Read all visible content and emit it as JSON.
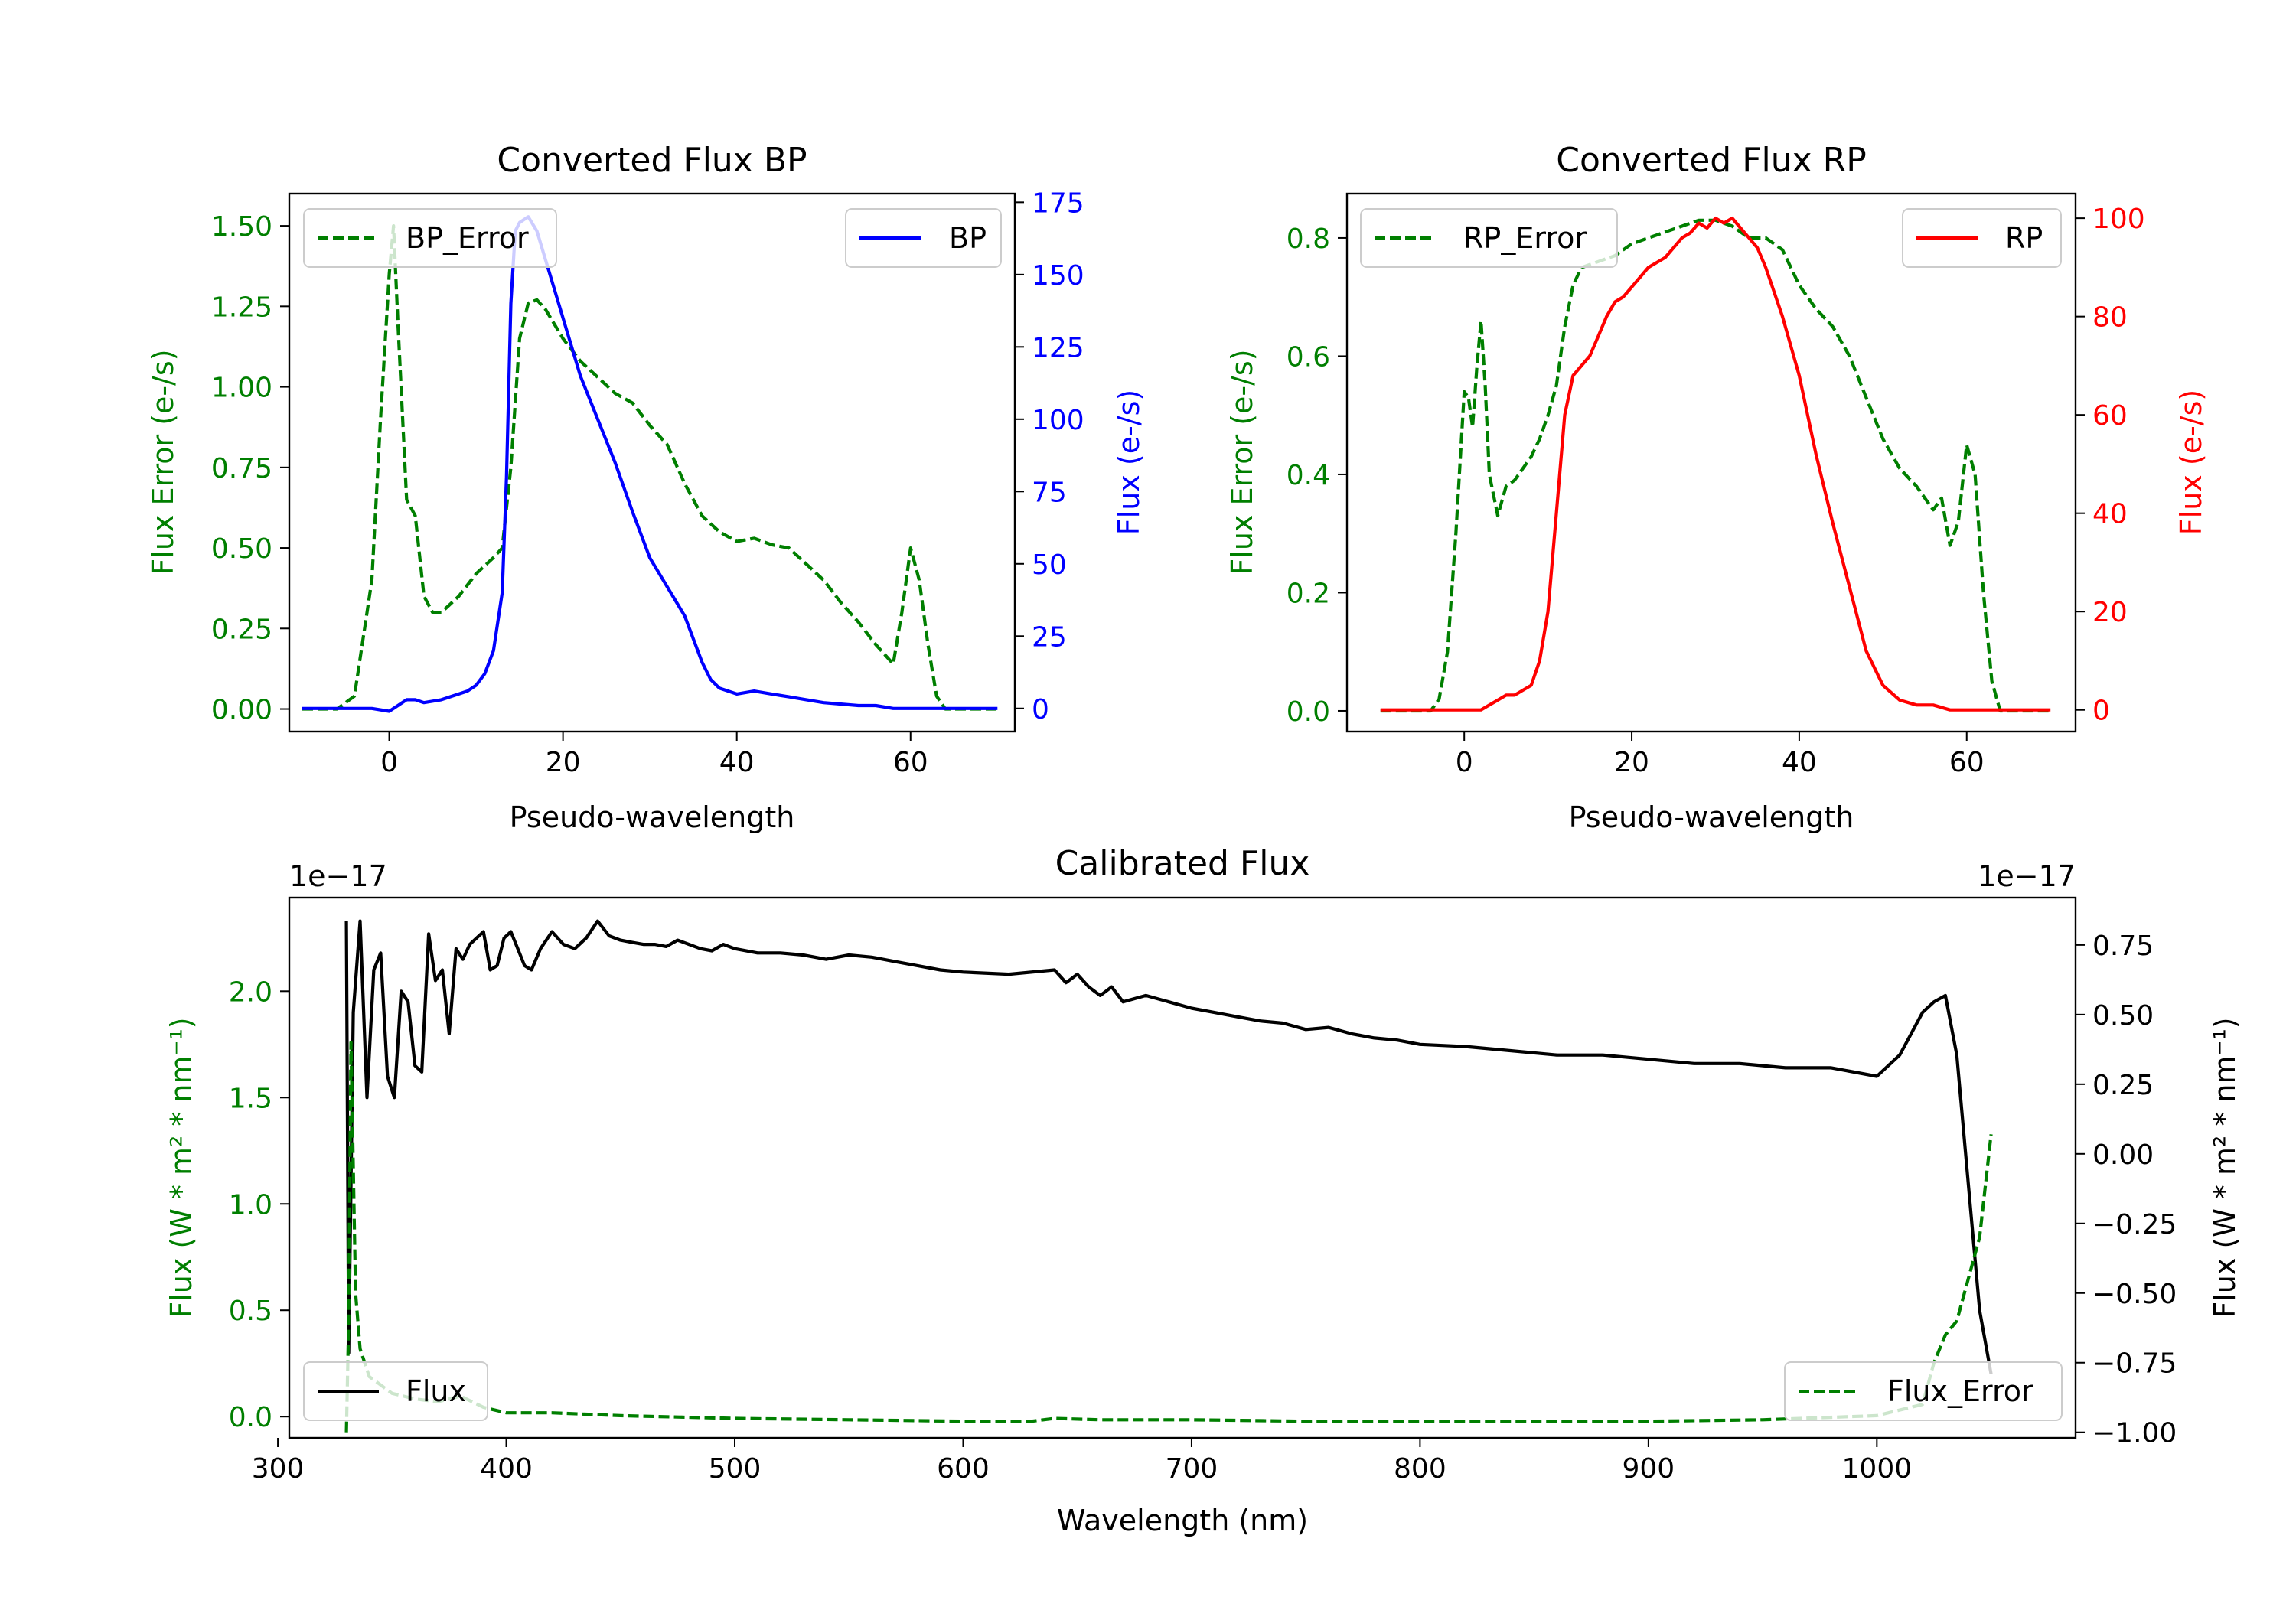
{
  "colors": {
    "green": "#007f00",
    "blue": "#0000ff",
    "red": "#ff0000",
    "black": "#000000"
  },
  "chart_data": [
    {
      "id": "bp",
      "type": "line",
      "title": "Converted Flux BP",
      "xlabel": "Pseudo-wavelength",
      "ylabel_left": "Flux Error (e-/s)",
      "ylabel_right": "Flux (e-/s)",
      "xlim": [
        -11.5,
        72
      ],
      "ylim_left": [
        -0.07,
        1.6
      ],
      "ylim_right": [
        -8,
        178
      ],
      "xticks": [
        "0",
        "20",
        "40",
        "60"
      ],
      "xtick_values": [
        0,
        20,
        40,
        60
      ],
      "yticks_left": [
        "0.00",
        "0.25",
        "0.50",
        "0.75",
        "1.00",
        "1.25",
        "1.50"
      ],
      "ytick_values_left": [
        0,
        0.25,
        0.5,
        0.75,
        1.0,
        1.25,
        1.5
      ],
      "yticks_right": [
        "0",
        "25",
        "50",
        "75",
        "100",
        "125",
        "150",
        "175"
      ],
      "ytick_values_right": [
        0,
        25,
        50,
        75,
        100,
        125,
        150,
        175
      ],
      "legend_left": "BP_Error",
      "legend_right": "BP",
      "series": [
        {
          "name": "BP_Error",
          "axis": "left",
          "style": "dashed",
          "color": "green",
          "x": [
            -10,
            -6,
            -4,
            -2,
            -1,
            0,
            0.5,
            1,
            2,
            3,
            4,
            5,
            6,
            8,
            10,
            12,
            13,
            14,
            15,
            16,
            17,
            18,
            20,
            22,
            24,
            26,
            28,
            30,
            32,
            34,
            36,
            38,
            40,
            42,
            44,
            46,
            48,
            50,
            52,
            54,
            56,
            57,
            58,
            59,
            60,
            61,
            62,
            63,
            64,
            66,
            70
          ],
          "y": [
            0,
            0,
            0.04,
            0.4,
            0.9,
            1.35,
            1.5,
            1.2,
            0.65,
            0.6,
            0.35,
            0.3,
            0.3,
            0.35,
            0.42,
            0.47,
            0.5,
            0.75,
            1.15,
            1.26,
            1.27,
            1.24,
            1.15,
            1.08,
            1.03,
            0.98,
            0.95,
            0.88,
            0.82,
            0.7,
            0.6,
            0.55,
            0.52,
            0.53,
            0.51,
            0.5,
            0.45,
            0.4,
            0.33,
            0.27,
            0.2,
            0.17,
            0.14,
            0.3,
            0.5,
            0.4,
            0.2,
            0.04,
            0,
            0,
            0
          ]
        },
        {
          "name": "BP",
          "axis": "right",
          "style": "solid",
          "color": "blue",
          "x": [
            -10,
            -6,
            -2,
            0,
            1,
            2,
            3,
            4,
            6,
            7,
            8,
            9,
            10,
            11,
            12,
            13,
            13.5,
            14,
            14.5,
            15,
            16,
            17,
            18,
            19,
            20,
            22,
            24,
            26,
            28,
            30,
            32,
            34,
            36,
            37,
            38,
            40,
            42,
            44,
            46,
            48,
            50,
            54,
            56,
            58,
            60,
            64,
            70
          ],
          "y": [
            0,
            0,
            0,
            -1,
            1,
            3,
            3,
            2,
            3,
            4,
            5,
            6,
            8,
            12,
            20,
            40,
            80,
            140,
            165,
            168,
            170,
            165,
            155,
            145,
            135,
            115,
            100,
            85,
            68,
            52,
            42,
            32,
            16,
            10,
            7,
            5,
            6,
            5,
            4,
            3,
            2,
            1,
            1,
            0,
            0,
            0,
            0
          ]
        }
      ]
    },
    {
      "id": "rp",
      "type": "line",
      "title": "Converted Flux RP",
      "xlabel": "Pseudo-wavelength",
      "ylabel_left": "Flux Error (e-/s)",
      "ylabel_right": "Flux (e-/s)",
      "xlim": [
        -14,
        73
      ],
      "ylim_left": [
        -0.035,
        0.875
      ],
      "ylim_right": [
        -4.4,
        105
      ],
      "xticks": [
        "0",
        "20",
        "40",
        "60"
      ],
      "xtick_values": [
        0,
        20,
        40,
        60
      ],
      "yticks_left": [
        "0.0",
        "0.2",
        "0.4",
        "0.6",
        "0.8"
      ],
      "ytick_values_left": [
        0,
        0.2,
        0.4,
        0.6,
        0.8
      ],
      "yticks_right": [
        "0",
        "20",
        "40",
        "60",
        "80",
        "100"
      ],
      "ytick_values_right": [
        0,
        20,
        40,
        60,
        80,
        100
      ],
      "legend_left": "RP_Error",
      "legend_right": "RP",
      "series": [
        {
          "name": "RP_Error",
          "axis": "left",
          "style": "dashed",
          "color": "green",
          "x": [
            -10,
            -4,
            -3,
            -2,
            -1,
            0,
            0.5,
            1,
            1.5,
            2,
            2.5,
            3,
            4,
            5,
            6,
            7,
            8,
            9,
            10,
            11,
            12,
            13,
            14,
            16,
            18,
            20,
            22,
            24,
            26,
            28,
            30,
            32,
            34,
            36,
            38,
            40,
            42,
            44,
            46,
            48,
            50,
            52,
            54,
            56,
            57,
            58,
            59,
            60,
            61,
            62,
            63,
            64,
            66,
            70
          ],
          "y": [
            0,
            0,
            0.02,
            0.1,
            0.3,
            0.54,
            0.53,
            0.48,
            0.58,
            0.66,
            0.55,
            0.4,
            0.33,
            0.38,
            0.39,
            0.41,
            0.43,
            0.46,
            0.5,
            0.55,
            0.65,
            0.72,
            0.75,
            0.76,
            0.77,
            0.79,
            0.8,
            0.81,
            0.82,
            0.83,
            0.83,
            0.82,
            0.8,
            0.8,
            0.78,
            0.72,
            0.68,
            0.65,
            0.6,
            0.53,
            0.46,
            0.41,
            0.38,
            0.34,
            0.36,
            0.28,
            0.32,
            0.45,
            0.4,
            0.2,
            0.05,
            0,
            0,
            0
          ]
        },
        {
          "name": "RP",
          "axis": "right",
          "style": "solid",
          "color": "red",
          "x": [
            -10,
            -4,
            0,
            2,
            3,
            4,
            5,
            6,
            7,
            8,
            9,
            10,
            11,
            12,
            13,
            14,
            15,
            16,
            17,
            18,
            19,
            20,
            21,
            22,
            24,
            26,
            27,
            28,
            29,
            30,
            31,
            32,
            33,
            34,
            35,
            36,
            37,
            38,
            40,
            42,
            44,
            46,
            48,
            50,
            52,
            54,
            56,
            58,
            60,
            62,
            66,
            70
          ],
          "y": [
            0,
            0,
            0,
            0,
            1,
            2,
            3,
            3,
            4,
            5,
            10,
            20,
            40,
            60,
            68,
            70,
            72,
            76,
            80,
            83,
            84,
            86,
            88,
            90,
            92,
            96,
            97,
            99,
            98,
            100,
            99,
            100,
            98,
            96,
            94,
            90,
            85,
            80,
            68,
            52,
            38,
            25,
            12,
            5,
            2,
            1,
            1,
            0,
            0,
            0,
            0,
            0
          ]
        }
      ]
    },
    {
      "id": "calib",
      "type": "line",
      "title": "Calibrated Flux",
      "xlabel": "Wavelength (nm)",
      "ylabel_left": "Flux (W * m² * nm⁻¹)",
      "ylabel_right": "Flux (W * m² * nm⁻¹)",
      "multiplier_left": "1e−17",
      "multiplier_right": "1e−17",
      "xlim": [
        305,
        1087
      ],
      "ylim_left": [
        -0.1,
        2.44
      ],
      "ylim_right": [
        -1.02,
        0.92
      ],
      "xticks": [
        "300",
        "400",
        "500",
        "600",
        "700",
        "800",
        "900",
        "1000"
      ],
      "xtick_values": [
        300,
        400,
        500,
        600,
        700,
        800,
        900,
        1000
      ],
      "yticks_left": [
        "0.0",
        "0.5",
        "1.0",
        "1.5",
        "2.0"
      ],
      "ytick_values_left": [
        0,
        0.5,
        1.0,
        1.5,
        2.0
      ],
      "yticks_right": [
        "−1.00",
        "−0.75",
        "−0.50",
        "−0.25",
        "0.00",
        "0.25",
        "0.50",
        "0.75"
      ],
      "ytick_values_right": [
        -1.0,
        -0.75,
        -0.5,
        -0.25,
        0,
        0.25,
        0.5,
        0.75
      ],
      "legend_left": "Flux",
      "legend_right": "Flux_Error",
      "series": [
        {
          "name": "Flux",
          "axis": "left",
          "style": "solid",
          "color": "black",
          "x": [
            330,
            331,
            333,
            336,
            339,
            342,
            345,
            348,
            351,
            354,
            357,
            360,
            363,
            366,
            369,
            372,
            375,
            378,
            381,
            384,
            387,
            390,
            393,
            396,
            399,
            402,
            405,
            408,
            411,
            415,
            420,
            425,
            430,
            435,
            440,
            445,
            450,
            455,
            460,
            465,
            470,
            475,
            480,
            485,
            490,
            495,
            500,
            510,
            520,
            530,
            540,
            550,
            560,
            570,
            580,
            590,
            600,
            620,
            640,
            645,
            650,
            655,
            660,
            665,
            670,
            680,
            690,
            700,
            710,
            720,
            730,
            740,
            750,
            760,
            770,
            780,
            790,
            800,
            820,
            840,
            860,
            880,
            900,
            920,
            940,
            960,
            980,
            1000,
            1010,
            1020,
            1025,
            1030,
            1035,
            1040,
            1045,
            1050
          ],
          "y": [
            2.33,
            0.3,
            1.9,
            2.33,
            1.5,
            2.1,
            2.18,
            1.6,
            1.5,
            2.0,
            1.95,
            1.65,
            1.62,
            2.27,
            2.05,
            2.1,
            1.8,
            2.2,
            2.15,
            2.22,
            2.25,
            2.28,
            2.1,
            2.12,
            2.25,
            2.28,
            2.2,
            2.12,
            2.1,
            2.2,
            2.28,
            2.22,
            2.2,
            2.25,
            2.33,
            2.26,
            2.24,
            2.23,
            2.22,
            2.22,
            2.21,
            2.24,
            2.22,
            2.2,
            2.19,
            2.22,
            2.2,
            2.18,
            2.18,
            2.17,
            2.15,
            2.17,
            2.16,
            2.14,
            2.12,
            2.1,
            2.09,
            2.08,
            2.1,
            2.04,
            2.08,
            2.02,
            1.98,
            2.02,
            1.95,
            1.98,
            1.95,
            1.92,
            1.9,
            1.88,
            1.86,
            1.85,
            1.82,
            1.83,
            1.8,
            1.78,
            1.77,
            1.75,
            1.74,
            1.72,
            1.7,
            1.7,
            1.68,
            1.66,
            1.66,
            1.64,
            1.64,
            1.6,
            1.7,
            1.9,
            1.95,
            1.98,
            1.7,
            1.1,
            0.5,
            0.2
          ]
        },
        {
          "name": "Flux_Error",
          "axis": "right",
          "style": "dashed",
          "color": "green",
          "x": [
            330,
            331,
            332,
            334,
            336,
            340,
            350,
            360,
            370,
            380,
            390,
            400,
            420,
            450,
            500,
            550,
            600,
            630,
            640,
            660,
            700,
            750,
            800,
            850,
            900,
            950,
            1000,
            1020,
            1025,
            1030,
            1035,
            1040,
            1045,
            1050
          ],
          "y": [
            -1.0,
            -0.6,
            0.4,
            -0.5,
            -0.7,
            -0.8,
            -0.86,
            -0.88,
            -0.89,
            -0.87,
            -0.91,
            -0.93,
            -0.93,
            -0.94,
            -0.95,
            -0.955,
            -0.96,
            -0.96,
            -0.95,
            -0.955,
            -0.955,
            -0.96,
            -0.96,
            -0.96,
            -0.96,
            -0.955,
            -0.94,
            -0.9,
            -0.75,
            -0.65,
            -0.6,
            -0.45,
            -0.3,
            0.07
          ]
        }
      ]
    }
  ]
}
